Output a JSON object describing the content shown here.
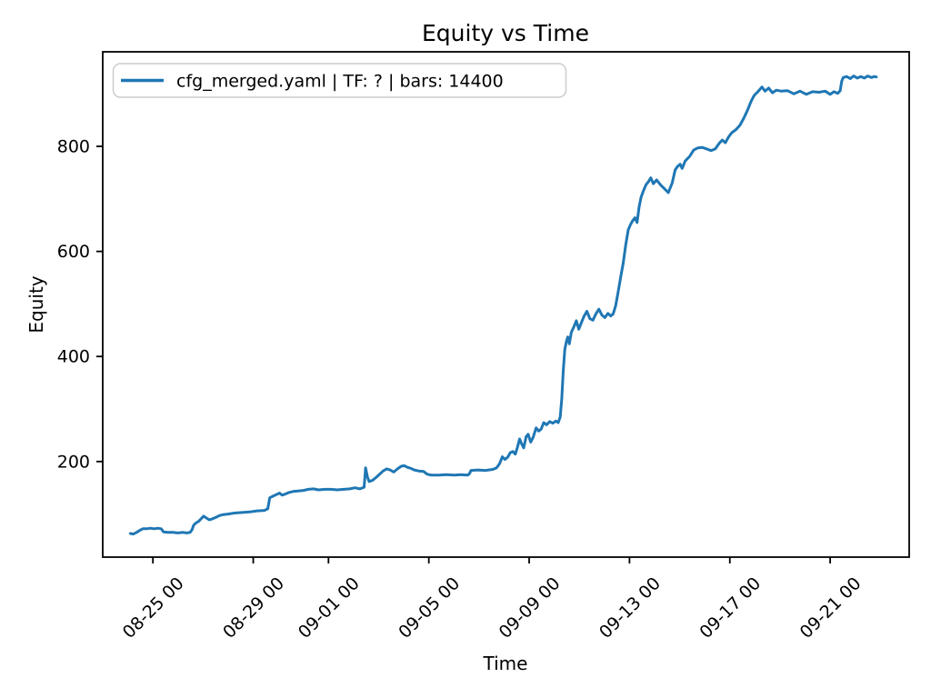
{
  "figure": {
    "background": "#ffffff"
  },
  "chart_data": {
    "type": "line",
    "title": "Equity vs Time",
    "xlabel": "Time",
    "ylabel": "Equity",
    "grid": false,
    "legend_position": "upper left",
    "x_unit": "days relative to 08-25 00:00 (tick format MM-DD HH)",
    "xlim": [
      -2.0,
      30.15
    ],
    "ylim": [
      18,
      980
    ],
    "x_ticks": [
      {
        "d": 0,
        "label": "08-25 00"
      },
      {
        "d": 4,
        "label": "08-29 00"
      },
      {
        "d": 7,
        "label": "09-01 00"
      },
      {
        "d": 11,
        "label": "09-05 00"
      },
      {
        "d": 15,
        "label": "09-09 00"
      },
      {
        "d": 19,
        "label": "09-13 00"
      },
      {
        "d": 23,
        "label": "09-17 00"
      },
      {
        "d": 27,
        "label": "09-21 00"
      }
    ],
    "y_ticks": [
      200,
      400,
      600,
      800
    ],
    "series": [
      {
        "name": "cfg_merged.yaml | TF: ? | bars: 14400",
        "color": "#1f77b4",
        "points": [
          [
            -0.9,
            63
          ],
          [
            -0.78,
            62
          ],
          [
            -0.65,
            65
          ],
          [
            -0.52,
            69
          ],
          [
            -0.4,
            72
          ],
          [
            -0.25,
            72
          ],
          [
            -0.1,
            73
          ],
          [
            0.05,
            72
          ],
          [
            0.2,
            73
          ],
          [
            0.33,
            72
          ],
          [
            0.42,
            66
          ],
          [
            0.6,
            65
          ],
          [
            0.8,
            65
          ],
          [
            1.0,
            64
          ],
          [
            1.2,
            65
          ],
          [
            1.35,
            64
          ],
          [
            1.48,
            65
          ],
          [
            1.56,
            70
          ],
          [
            1.63,
            79
          ],
          [
            1.72,
            83
          ],
          [
            1.82,
            86
          ],
          [
            1.92,
            91
          ],
          [
            2.02,
            96
          ],
          [
            2.12,
            93
          ],
          [
            2.25,
            89
          ],
          [
            2.38,
            91
          ],
          [
            2.52,
            94
          ],
          [
            2.65,
            97
          ],
          [
            2.8,
            99
          ],
          [
            3.0,
            100
          ],
          [
            3.25,
            102
          ],
          [
            3.55,
            103
          ],
          [
            3.85,
            104
          ],
          [
            4.15,
            106
          ],
          [
            4.45,
            107
          ],
          [
            4.58,
            110
          ],
          [
            4.66,
            131
          ],
          [
            4.78,
            134
          ],
          [
            4.92,
            137
          ],
          [
            5.05,
            140
          ],
          [
            5.15,
            136
          ],
          [
            5.28,
            138
          ],
          [
            5.42,
            141
          ],
          [
            5.58,
            143
          ],
          [
            5.78,
            144
          ],
          [
            6.0,
            145
          ],
          [
            6.2,
            147
          ],
          [
            6.4,
            148
          ],
          [
            6.6,
            146
          ],
          [
            6.85,
            147
          ],
          [
            7.1,
            147
          ],
          [
            7.35,
            146
          ],
          [
            7.6,
            147
          ],
          [
            7.85,
            148
          ],
          [
            8.05,
            150
          ],
          [
            8.25,
            148
          ],
          [
            8.42,
            151
          ],
          [
            8.48,
            188
          ],
          [
            8.55,
            171
          ],
          [
            8.62,
            162
          ],
          [
            8.75,
            164
          ],
          [
            8.88,
            169
          ],
          [
            9.02,
            175
          ],
          [
            9.18,
            182
          ],
          [
            9.32,
            186
          ],
          [
            9.46,
            184
          ],
          [
            9.6,
            180
          ],
          [
            9.75,
            186
          ],
          [
            9.9,
            191
          ],
          [
            10.02,
            192
          ],
          [
            10.15,
            189
          ],
          [
            10.28,
            187
          ],
          [
            10.42,
            184
          ],
          [
            10.6,
            182
          ],
          [
            10.8,
            181
          ],
          [
            10.93,
            176
          ],
          [
            11.1,
            174
          ],
          [
            11.4,
            174
          ],
          [
            11.7,
            175
          ],
          [
            12.0,
            174
          ],
          [
            12.3,
            175
          ],
          [
            12.55,
            174
          ],
          [
            12.62,
            177
          ],
          [
            12.68,
            183
          ],
          [
            12.95,
            184
          ],
          [
            13.25,
            183
          ],
          [
            13.55,
            185
          ],
          [
            13.7,
            188
          ],
          [
            13.82,
            196
          ],
          [
            13.93,
            209
          ],
          [
            14.03,
            204
          ],
          [
            14.14,
            208
          ],
          [
            14.25,
            217
          ],
          [
            14.35,
            219
          ],
          [
            14.45,
            214
          ],
          [
            14.54,
            228
          ],
          [
            14.62,
            243
          ],
          [
            14.7,
            234
          ],
          [
            14.78,
            226
          ],
          [
            14.88,
            247
          ],
          [
            14.96,
            252
          ],
          [
            15.06,
            237
          ],
          [
            15.16,
            246
          ],
          [
            15.28,
            264
          ],
          [
            15.38,
            258
          ],
          [
            15.48,
            262
          ],
          [
            15.58,
            274
          ],
          [
            15.7,
            270
          ],
          [
            15.82,
            276
          ],
          [
            15.94,
            273
          ],
          [
            16.06,
            277
          ],
          [
            16.16,
            274
          ],
          [
            16.24,
            285
          ],
          [
            16.3,
            320
          ],
          [
            16.36,
            372
          ],
          [
            16.42,
            413
          ],
          [
            16.48,
            428
          ],
          [
            16.54,
            437
          ],
          [
            16.6,
            424
          ],
          [
            16.68,
            446
          ],
          [
            16.78,
            456
          ],
          [
            16.88,
            468
          ],
          [
            16.98,
            452
          ],
          [
            17.08,
            464
          ],
          [
            17.18,
            476
          ],
          [
            17.3,
            486
          ],
          [
            17.42,
            472
          ],
          [
            17.54,
            469
          ],
          [
            17.66,
            481
          ],
          [
            17.78,
            490
          ],
          [
            17.9,
            479
          ],
          [
            18.02,
            474
          ],
          [
            18.14,
            482
          ],
          [
            18.25,
            477
          ],
          [
            18.35,
            481
          ],
          [
            18.45,
            497
          ],
          [
            18.55,
            524
          ],
          [
            18.65,
            551
          ],
          [
            18.75,
            578
          ],
          [
            18.85,
            612
          ],
          [
            18.95,
            641
          ],
          [
            19.03,
            650
          ],
          [
            19.12,
            658
          ],
          [
            19.22,
            664
          ],
          [
            19.3,
            655
          ],
          [
            19.38,
            684
          ],
          [
            19.46,
            703
          ],
          [
            19.56,
            716
          ],
          [
            19.66,
            727
          ],
          [
            19.76,
            733
          ],
          [
            19.85,
            740
          ],
          [
            19.95,
            729
          ],
          [
            20.08,
            736
          ],
          [
            20.25,
            726
          ],
          [
            20.4,
            719
          ],
          [
            20.55,
            712
          ],
          [
            20.7,
            730
          ],
          [
            20.82,
            755
          ],
          [
            20.92,
            762
          ],
          [
            21.02,
            766
          ],
          [
            21.1,
            758
          ],
          [
            21.22,
            772
          ],
          [
            21.4,
            781
          ],
          [
            21.56,
            793
          ],
          [
            21.72,
            797
          ],
          [
            21.9,
            798
          ],
          [
            22.08,
            795
          ],
          [
            22.25,
            792
          ],
          [
            22.42,
            795
          ],
          [
            22.58,
            806
          ],
          [
            22.7,
            812
          ],
          [
            22.82,
            807
          ],
          [
            22.95,
            818
          ],
          [
            23.08,
            826
          ],
          [
            23.25,
            832
          ],
          [
            23.4,
            840
          ],
          [
            23.55,
            853
          ],
          [
            23.7,
            868
          ],
          [
            23.85,
            886
          ],
          [
            23.97,
            897
          ],
          [
            24.12,
            904
          ],
          [
            24.28,
            913
          ],
          [
            24.4,
            905
          ],
          [
            24.55,
            911
          ],
          [
            24.7,
            902
          ],
          [
            24.85,
            907
          ],
          [
            25.05,
            905
          ],
          [
            25.3,
            906
          ],
          [
            25.55,
            900
          ],
          [
            25.8,
            905
          ],
          [
            26.05,
            899
          ],
          [
            26.3,
            904
          ],
          [
            26.55,
            903
          ],
          [
            26.8,
            905
          ],
          [
            27.0,
            899
          ],
          [
            27.15,
            904
          ],
          [
            27.3,
            901
          ],
          [
            27.4,
            906
          ],
          [
            27.46,
            924
          ],
          [
            27.52,
            931
          ],
          [
            27.66,
            933
          ],
          [
            27.8,
            929
          ],
          [
            27.94,
            934
          ],
          [
            28.08,
            930
          ],
          [
            28.22,
            933
          ],
          [
            28.36,
            930
          ],
          [
            28.5,
            934
          ],
          [
            28.64,
            931
          ],
          [
            28.76,
            933
          ],
          [
            28.84,
            932
          ]
        ]
      }
    ]
  },
  "legend": {
    "label": "cfg_merged.yaml | TF: ? | bars: 14400",
    "border_color": "#cccccc",
    "line_color": "#1f77b4"
  },
  "colors": {
    "line": "#1f77b4",
    "spine": "#000000",
    "text": "#000000",
    "legend_border": "#cccccc"
  }
}
